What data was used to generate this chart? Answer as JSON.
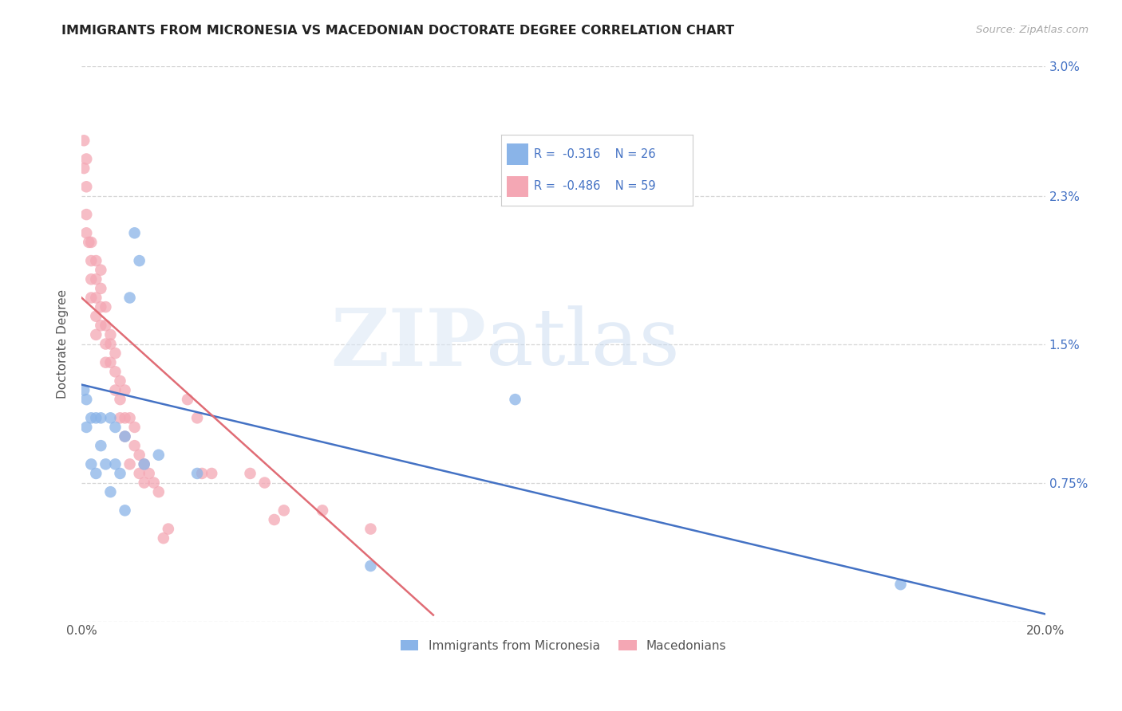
{
  "title": "IMMIGRANTS FROM MICRONESIA VS MACEDONIAN DOCTORATE DEGREE CORRELATION CHART",
  "source": "Source: ZipAtlas.com",
  "ylabel": "Doctorate Degree",
  "legend_label1": "Immigrants from Micronesia",
  "legend_label2": "Macedonians",
  "xlim": [
    0,
    0.2
  ],
  "ylim": [
    0,
    0.03
  ],
  "xticks": [
    0.0,
    0.05,
    0.1,
    0.15,
    0.2
  ],
  "xticklabels": [
    "0.0%",
    "",
    "",
    "",
    "20.0%"
  ],
  "ytick_positions": [
    0.0,
    0.0075,
    0.015,
    0.023,
    0.03
  ],
  "ytick_labels": [
    "",
    "0.75%",
    "1.5%",
    "2.3%",
    "3.0%"
  ],
  "color_blue": "#8ab4e8",
  "color_pink": "#f4a7b4",
  "color_blue_line": "#4472c4",
  "color_pink_line": "#e06c75",
  "watermark_zip": "ZIP",
  "watermark_atlas": "atlas",
  "blue_intercept": 0.0128,
  "blue_slope": -0.062,
  "pink_intercept": 0.0175,
  "pink_slope": -0.235,
  "pink_line_xmax": 0.073,
  "blue_points_x": [
    0.0005,
    0.001,
    0.001,
    0.002,
    0.002,
    0.003,
    0.003,
    0.004,
    0.004,
    0.005,
    0.006,
    0.006,
    0.007,
    0.007,
    0.008,
    0.009,
    0.009,
    0.01,
    0.011,
    0.012,
    0.013,
    0.016,
    0.06,
    0.09,
    0.17,
    0.024
  ],
  "blue_points_y": [
    0.0125,
    0.012,
    0.0105,
    0.011,
    0.0085,
    0.011,
    0.008,
    0.011,
    0.0095,
    0.0085,
    0.011,
    0.007,
    0.0105,
    0.0085,
    0.008,
    0.006,
    0.01,
    0.0175,
    0.021,
    0.0195,
    0.0085,
    0.009,
    0.003,
    0.012,
    0.002,
    0.008
  ],
  "pink_points_x": [
    0.0005,
    0.0005,
    0.001,
    0.001,
    0.001,
    0.001,
    0.0015,
    0.002,
    0.002,
    0.002,
    0.002,
    0.003,
    0.003,
    0.003,
    0.003,
    0.003,
    0.004,
    0.004,
    0.004,
    0.004,
    0.005,
    0.005,
    0.005,
    0.005,
    0.006,
    0.006,
    0.006,
    0.007,
    0.007,
    0.007,
    0.008,
    0.008,
    0.008,
    0.009,
    0.009,
    0.009,
    0.01,
    0.01,
    0.011,
    0.011,
    0.012,
    0.012,
    0.013,
    0.013,
    0.014,
    0.015,
    0.016,
    0.017,
    0.018,
    0.022,
    0.024,
    0.025,
    0.027,
    0.035,
    0.038,
    0.04,
    0.042,
    0.05,
    0.06
  ],
  "pink_points_y": [
    0.026,
    0.0245,
    0.025,
    0.0235,
    0.022,
    0.021,
    0.0205,
    0.0205,
    0.0195,
    0.0185,
    0.0175,
    0.0195,
    0.0185,
    0.0175,
    0.0165,
    0.0155,
    0.019,
    0.018,
    0.017,
    0.016,
    0.017,
    0.016,
    0.015,
    0.014,
    0.0155,
    0.015,
    0.014,
    0.0145,
    0.0135,
    0.0125,
    0.013,
    0.012,
    0.011,
    0.0125,
    0.011,
    0.01,
    0.011,
    0.0085,
    0.0105,
    0.0095,
    0.009,
    0.008,
    0.0085,
    0.0075,
    0.008,
    0.0075,
    0.007,
    0.0045,
    0.005,
    0.012,
    0.011,
    0.008,
    0.008,
    0.008,
    0.0075,
    0.0055,
    0.006,
    0.006,
    0.005
  ]
}
